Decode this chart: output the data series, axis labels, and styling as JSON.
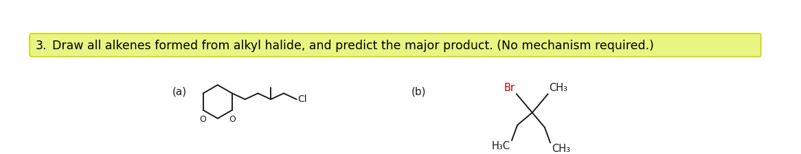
{
  "title_text": "Draw all alkenes formed from alkyl halide, and predict the major product. (No mechanism required.)",
  "title_number": "3.",
  "title_highlight_color": "#e8f580",
  "title_border_color": "#c8d400",
  "title_text_color": "#000000",
  "background_color": "#ffffff",
  "label_a": "(a)",
  "label_b": "(b)",
  "cl_label": "Cl",
  "br_label": "Br",
  "br_color": "#bb0000",
  "h3c_label": "H₃C",
  "ch3_label_top": "CH₃",
  "ch3_label_right": "CH₃",
  "o_label": "O",
  "figsize": [
    11.66,
    2.25
  ],
  "dpi": 100
}
